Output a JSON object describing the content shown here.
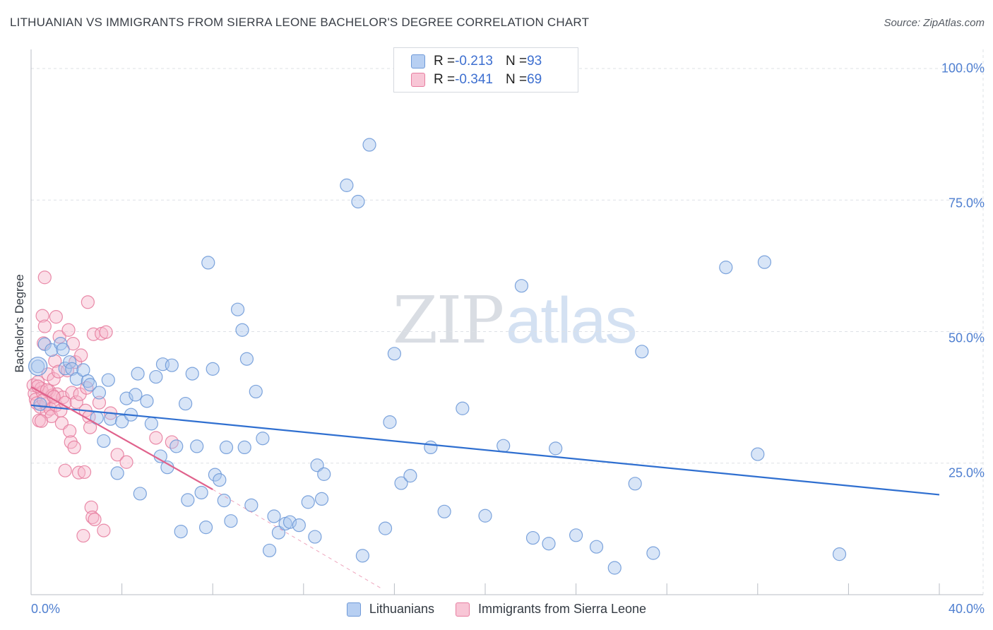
{
  "header": {
    "title": "LITHUANIAN VS IMMIGRANTS FROM SIERRA LEONE BACHELOR'S DEGREE CORRELATION CHART",
    "source": "Source: ZipAtlas.com"
  },
  "watermark": {
    "zip": "ZIP",
    "atlas": "atlas"
  },
  "colors": {
    "blue_fill": "#a9c6ee",
    "blue_stroke": "#6f9ad8",
    "blue_line": "#2f6fd0",
    "pink_fill": "#f6b8cb",
    "pink_stroke": "#e77ea0",
    "pink_line": "#e0628c",
    "grid": "#dde1e6",
    "axis_text": "#4f7fd0"
  },
  "legend_top": {
    "rows": [
      {
        "r_label": "R = ",
        "r_value": "-0.213",
        "n_label": "N = ",
        "n_value": "93"
      },
      {
        "r_label": "R = ",
        "r_value": "-0.341",
        "n_label": "N = ",
        "n_value": "69"
      }
    ]
  },
  "legend_bottom": {
    "series1": "Lithuanians",
    "series2": "Immigrants from Sierra Leone"
  },
  "chart_data": {
    "type": "scatter",
    "title": "LITHUANIAN VS IMMIGRANTS FROM SIERRA LEONE BACHELOR'S DEGREE CORRELATION CHART",
    "xlabel": "",
    "ylabel": "Bachelor's Degree",
    "xlim": [
      0,
      40
    ],
    "ylim": [
      0,
      102
    ],
    "x_tick_labels": [
      "0.0%",
      "40.0%"
    ],
    "y_ticks": [
      25,
      50,
      75,
      100
    ],
    "y_tick_labels": [
      "25.0%",
      "50.0%",
      "75.0%",
      "100.0%"
    ],
    "grid": true,
    "series": [
      {
        "name": "Lithuanians",
        "stats": {
          "R": -0.213,
          "N": 93
        },
        "trend": {
          "x": [
            0,
            40
          ],
          "y": [
            36.0,
            19.0
          ]
        },
        "points": [
          [
            0.3,
            43.4
          ],
          [
            0.6,
            47.6
          ],
          [
            0.9,
            46.5
          ],
          [
            1.3,
            47.7
          ],
          [
            1.4,
            46.6
          ],
          [
            1.5,
            43.0
          ],
          [
            1.7,
            44.2
          ],
          [
            1.8,
            42.9
          ],
          [
            2.0,
            41.0
          ],
          [
            2.3,
            42.7
          ],
          [
            2.5,
            40.6
          ],
          [
            2.6,
            39.9
          ],
          [
            2.9,
            33.6
          ],
          [
            3.0,
            38.4
          ],
          [
            3.2,
            29.2
          ],
          [
            3.4,
            40.8
          ],
          [
            3.5,
            33.4
          ],
          [
            3.8,
            23.1
          ],
          [
            4.0,
            32.9
          ],
          [
            4.2,
            37.3
          ],
          [
            4.4,
            34.2
          ],
          [
            4.6,
            38.0
          ],
          [
            4.7,
            42.0
          ],
          [
            4.8,
            19.2
          ],
          [
            5.1,
            36.8
          ],
          [
            5.3,
            32.5
          ],
          [
            5.5,
            41.4
          ],
          [
            5.7,
            26.3
          ],
          [
            5.8,
            43.8
          ],
          [
            6.0,
            24.2
          ],
          [
            6.2,
            43.6
          ],
          [
            6.4,
            28.2
          ],
          [
            6.6,
            12.0
          ],
          [
            6.8,
            36.3
          ],
          [
            6.9,
            18.0
          ],
          [
            7.1,
            42.0
          ],
          [
            7.3,
            28.2
          ],
          [
            7.5,
            19.4
          ],
          [
            7.7,
            12.8
          ],
          [
            7.8,
            63.1
          ],
          [
            8.0,
            42.9
          ],
          [
            8.1,
            22.8
          ],
          [
            8.3,
            21.8
          ],
          [
            8.5,
            17.9
          ],
          [
            8.6,
            28.0
          ],
          [
            8.8,
            14.0
          ],
          [
            9.1,
            54.2
          ],
          [
            9.3,
            50.3
          ],
          [
            9.4,
            28.0
          ],
          [
            9.5,
            44.8
          ],
          [
            9.7,
            17.0
          ],
          [
            9.9,
            38.6
          ],
          [
            10.2,
            29.7
          ],
          [
            10.5,
            8.4
          ],
          [
            10.7,
            14.9
          ],
          [
            10.9,
            11.8
          ],
          [
            11.2,
            13.5
          ],
          [
            11.4,
            13.8
          ],
          [
            11.8,
            13.2
          ],
          [
            12.2,
            17.6
          ],
          [
            12.5,
            11.0
          ],
          [
            12.6,
            24.6
          ],
          [
            12.8,
            18.2
          ],
          [
            12.9,
            22.9
          ],
          [
            13.9,
            77.8
          ],
          [
            14.4,
            74.7
          ],
          [
            14.6,
            7.4
          ],
          [
            14.9,
            85.5
          ],
          [
            15.6,
            12.6
          ],
          [
            15.8,
            32.8
          ],
          [
            16.0,
            45.8
          ],
          [
            16.3,
            21.2
          ],
          [
            16.7,
            22.6
          ],
          [
            17.6,
            28.0
          ],
          [
            18.2,
            15.8
          ],
          [
            19.0,
            35.4
          ],
          [
            20.0,
            15.0
          ],
          [
            20.8,
            28.3
          ],
          [
            21.6,
            58.7
          ],
          [
            22.1,
            10.8
          ],
          [
            22.8,
            9.7
          ],
          [
            23.1,
            27.8
          ],
          [
            24.0,
            11.3
          ],
          [
            24.9,
            9.1
          ],
          [
            25.7,
            5.1
          ],
          [
            26.6,
            21.1
          ],
          [
            26.9,
            46.2
          ],
          [
            27.4,
            7.9
          ],
          [
            30.6,
            62.2
          ],
          [
            32.0,
            26.7
          ],
          [
            32.3,
            63.2
          ],
          [
            35.6,
            7.7
          ],
          [
            0.4,
            36.2
          ]
        ]
      },
      {
        "name": "Immigrants from Sierra Leone",
        "stats": {
          "R": -0.341,
          "N": 69
        },
        "trend": {
          "x": [
            0,
            8.0
          ],
          "y": [
            39.5,
            20.0
          ]
        },
        "trend_extrapolated": {
          "x": [
            8.0,
            15.5
          ],
          "y": [
            20.0,
            1.0
          ]
        },
        "points": [
          [
            0.1,
            39.8
          ],
          [
            0.15,
            38.2
          ],
          [
            0.2,
            37.1
          ],
          [
            0.25,
            36.4
          ],
          [
            0.3,
            40.4
          ],
          [
            0.35,
            33.1
          ],
          [
            0.4,
            35.7
          ],
          [
            0.45,
            39.2
          ],
          [
            0.5,
            38.5
          ],
          [
            0.5,
            53.0
          ],
          [
            0.55,
            47.8
          ],
          [
            0.6,
            51.0
          ],
          [
            0.6,
            60.3
          ],
          [
            0.65,
            36.2
          ],
          [
            0.7,
            34.8
          ],
          [
            0.75,
            41.9
          ],
          [
            0.8,
            38.7
          ],
          [
            0.85,
            35.3
          ],
          [
            0.9,
            33.9
          ],
          [
            0.95,
            37.9
          ],
          [
            1.0,
            41.0
          ],
          [
            1.05,
            44.4
          ],
          [
            1.1,
            52.8
          ],
          [
            1.1,
            36.0
          ],
          [
            1.15,
            38.1
          ],
          [
            1.2,
            42.4
          ],
          [
            1.25,
            49.0
          ],
          [
            1.3,
            35.0
          ],
          [
            1.35,
            32.6
          ],
          [
            1.4,
            37.5
          ],
          [
            1.5,
            23.6
          ],
          [
            1.5,
            36.5
          ],
          [
            1.6,
            42.6
          ],
          [
            1.65,
            50.3
          ],
          [
            1.7,
            31.1
          ],
          [
            1.75,
            29.0
          ],
          [
            1.8,
            38.4
          ],
          [
            1.85,
            47.7
          ],
          [
            1.9,
            28.0
          ],
          [
            1.95,
            44.2
          ],
          [
            2.0,
            36.6
          ],
          [
            2.1,
            23.2
          ],
          [
            2.15,
            38.1
          ],
          [
            2.2,
            45.5
          ],
          [
            2.3,
            11.2
          ],
          [
            2.35,
            23.3
          ],
          [
            2.4,
            35.0
          ],
          [
            2.45,
            39.3
          ],
          [
            2.5,
            55.6
          ],
          [
            2.55,
            33.8
          ],
          [
            2.6,
            31.8
          ],
          [
            2.65,
            16.6
          ],
          [
            2.7,
            14.7
          ],
          [
            2.75,
            49.5
          ],
          [
            2.8,
            14.3
          ],
          [
            3.0,
            36.5
          ],
          [
            3.1,
            49.6
          ],
          [
            3.2,
            12.2
          ],
          [
            3.3,
            49.9
          ],
          [
            3.5,
            34.5
          ],
          [
            3.8,
            26.6
          ],
          [
            4.2,
            25.2
          ],
          [
            5.5,
            29.8
          ],
          [
            6.2,
            29.0
          ],
          [
            0.3,
            39.6
          ],
          [
            0.45,
            33.0
          ],
          [
            0.55,
            37.0
          ],
          [
            0.7,
            38.9
          ],
          [
            1.0,
            37.6
          ]
        ]
      }
    ]
  }
}
